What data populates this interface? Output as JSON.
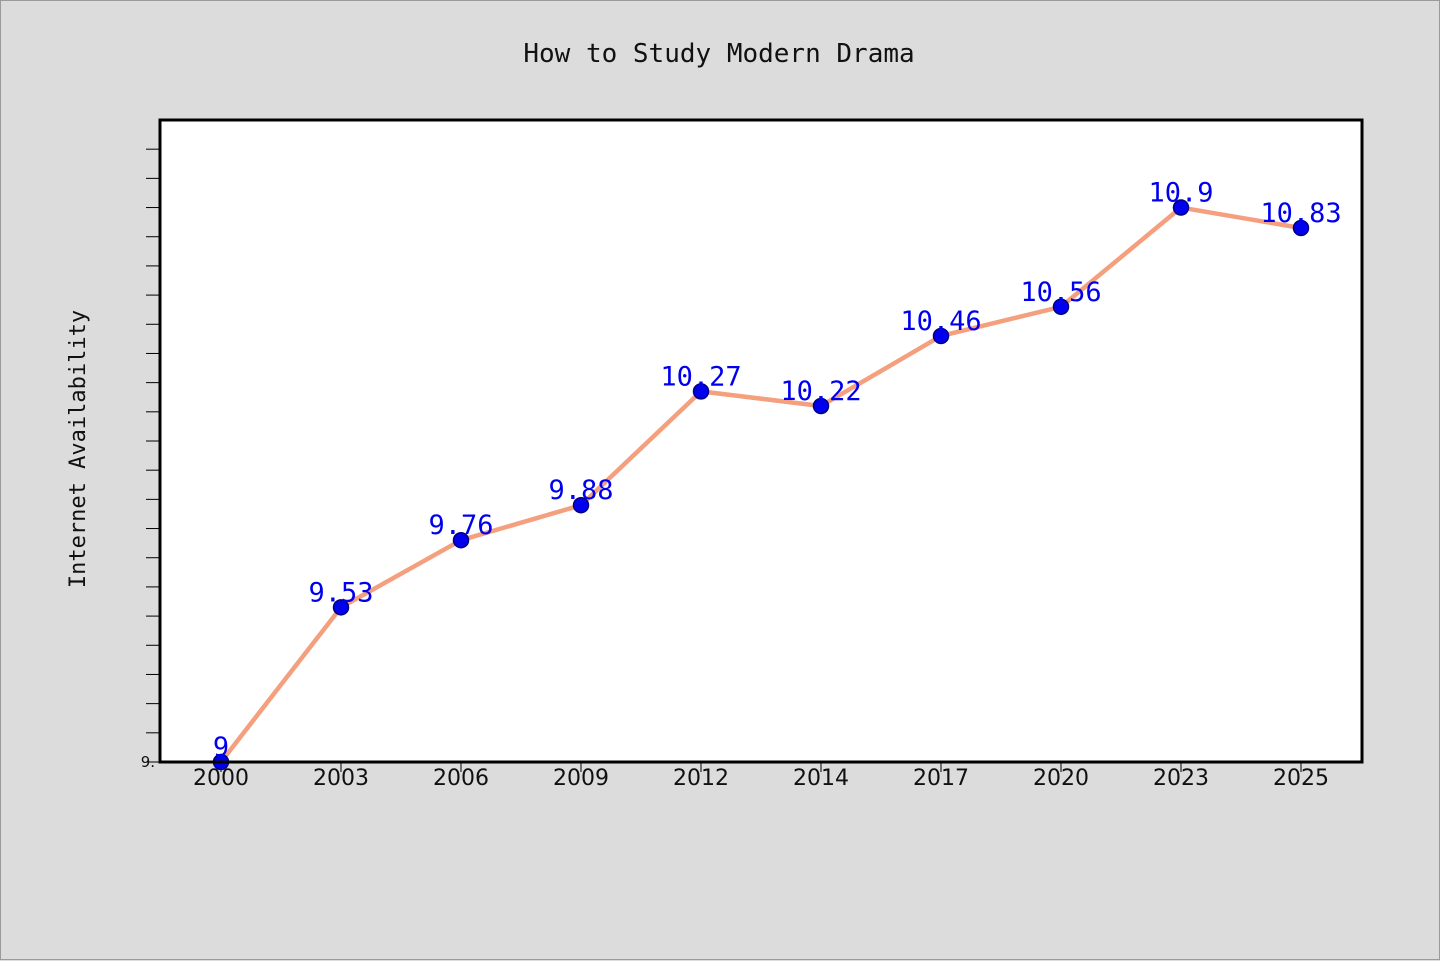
{
  "chart_data": {
    "type": "line",
    "title": "How to Study Modern Drama",
    "xlabel": "",
    "ylabel": "Internet Availability",
    "categories": [
      "2000",
      "2003",
      "2006",
      "2009",
      "2012",
      "2014",
      "2017",
      "2020",
      "2023",
      "2025"
    ],
    "series": [
      {
        "values": [
          9,
          9.53,
          9.76,
          9.88,
          10.27,
          10.22,
          10.46,
          10.56,
          10.9,
          10.83
        ]
      }
    ],
    "data_labels": [
      "9",
      "9.53",
      "9.76",
      "9.88",
      "10.27",
      "10.22",
      "10.46",
      "10.56",
      "10.9",
      "10.83"
    ],
    "ylim": [
      9,
      11.2
    ],
    "y_tick_labels": [
      "9."
    ],
    "grid": false,
    "legend": "none",
    "colors": {
      "line": "#f4a07e",
      "marker_fill": "#0000ee",
      "marker_edge": "#000080",
      "data_label": "#0000ee",
      "plot_background": "#ffffff",
      "figure_background": "#dcdcdc"
    }
  }
}
